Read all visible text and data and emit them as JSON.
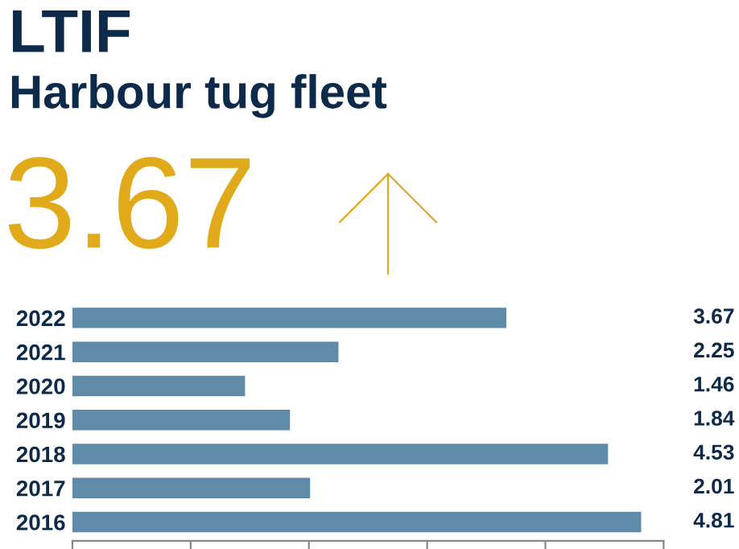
{
  "chart_data": {
    "type": "bar",
    "orientation": "horizontal",
    "title": "LTIF",
    "subtitle": "Harbour tug fleet",
    "annotations": [
      "3.67"
    ],
    "categories": [
      "2022",
      "2021",
      "2020",
      "2019",
      "2018",
      "2017",
      "2016"
    ],
    "values": [
      3.67,
      2.25,
      1.46,
      1.84,
      4.53,
      2.01,
      4.81
    ],
    "color": "#5f8aa8",
    "xlim": [
      0,
      5
    ],
    "xticks": [
      {
        "value": 0,
        "label": null
      },
      {
        "value": 1,
        "label": null
      },
      {
        "value": 2,
        "label": null
      },
      {
        "value": 3,
        "label": null
      },
      {
        "value": 4,
        "label": null
      },
      {
        "value": 5,
        "label": null
      }
    ],
    "data_labels": true,
    "grid": false
  }
}
